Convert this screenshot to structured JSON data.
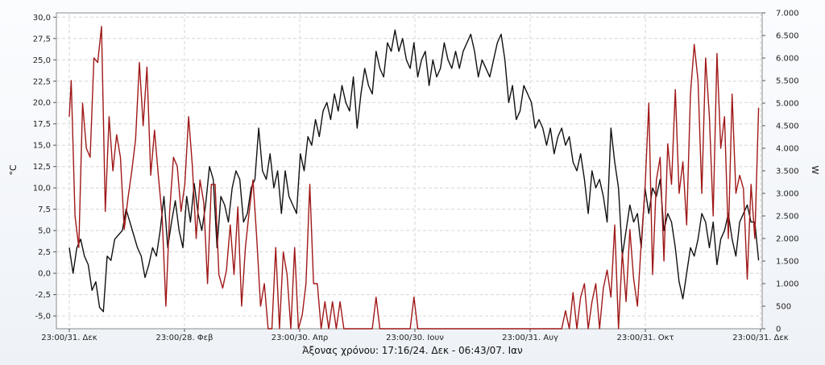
{
  "chart_data": {
    "type": "line",
    "caption": "Άξονας χρόνου: 17:16/24. Δεκ - 06:43/07. Ιαν",
    "ylabel_left": "°C",
    "ylabel_right": "W",
    "x_tick_labels": [
      "23:00/31. Δεκ",
      "23:00/28. Φεβ",
      "23:00/30. Απρ",
      "23:00/30. Ιουν",
      "23:00/31. Αυγ",
      "23:00/31. Οκτ",
      "23:00/31. Δεκ"
    ],
    "y_left": {
      "min": -6.5,
      "max": 30.5,
      "ticks": [
        "-5,0",
        "-2,5",
        "0,0",
        "2,5",
        "5,0",
        "7,5",
        "10,0",
        "12,5",
        "15,0",
        "17,5",
        "20,0",
        "22,5",
        "25,0",
        "27,5",
        "30,0"
      ],
      "tick_values": [
        -5,
        -2.5,
        0,
        2.5,
        5,
        7.5,
        10,
        12.5,
        15,
        17.5,
        20,
        22.5,
        25,
        27.5,
        30
      ]
    },
    "y_right": {
      "min": 0,
      "max": 7000,
      "ticks": [
        "0",
        "500",
        "1.000",
        "1.500",
        "2.000",
        "2.500",
        "3.000",
        "3.500",
        "4.000",
        "4.500",
        "5.000",
        "5.500",
        "6.000",
        "6.500",
        "7.000"
      ],
      "tick_values": [
        0,
        500,
        1000,
        1500,
        2000,
        2500,
        3000,
        3500,
        4000,
        4500,
        5000,
        5500,
        6000,
        6500,
        7000
      ]
    },
    "x_range_days": [
      0,
      365
    ],
    "grid": true,
    "series": [
      {
        "axis": "left",
        "color": "#111111",
        "points": [
          [
            0,
            3
          ],
          [
            2,
            0
          ],
          [
            4,
            3
          ],
          [
            6,
            4
          ],
          [
            8,
            2
          ],
          [
            10,
            1
          ],
          [
            12,
            -2
          ],
          [
            14,
            -1
          ],
          [
            16,
            -4
          ],
          [
            18,
            -4.5
          ],
          [
            20,
            2
          ],
          [
            22,
            1.5
          ],
          [
            24,
            4
          ],
          [
            26,
            4.5
          ],
          [
            28,
            5
          ],
          [
            30,
            7.5
          ],
          [
            32,
            6
          ],
          [
            34,
            4.5
          ],
          [
            36,
            3
          ],
          [
            38,
            2
          ],
          [
            40,
            -0.5
          ],
          [
            42,
            1
          ],
          [
            44,
            3
          ],
          [
            46,
            2
          ],
          [
            48,
            5
          ],
          [
            50,
            9
          ],
          [
            52,
            3
          ],
          [
            54,
            6
          ],
          [
            56,
            8.5
          ],
          [
            58,
            5
          ],
          [
            60,
            3
          ],
          [
            62,
            9
          ],
          [
            64,
            6
          ],
          [
            66,
            10.5
          ],
          [
            68,
            7
          ],
          [
            70,
            5
          ],
          [
            72,
            8
          ],
          [
            74,
            12.5
          ],
          [
            76,
            11
          ],
          [
            78,
            3
          ],
          [
            80,
            9
          ],
          [
            82,
            8
          ],
          [
            84,
            6
          ],
          [
            86,
            10
          ],
          [
            88,
            12
          ],
          [
            90,
            11
          ],
          [
            92,
            6
          ],
          [
            94,
            7
          ],
          [
            96,
            10
          ],
          [
            98,
            11
          ],
          [
            100,
            17
          ],
          [
            102,
            12
          ],
          [
            104,
            11
          ],
          [
            106,
            14
          ],
          [
            108,
            10
          ],
          [
            110,
            12
          ],
          [
            112,
            7
          ],
          [
            114,
            12
          ],
          [
            116,
            9
          ],
          [
            118,
            8
          ],
          [
            120,
            7
          ],
          [
            122,
            14
          ],
          [
            124,
            12
          ],
          [
            126,
            16
          ],
          [
            128,
            15
          ],
          [
            130,
            18
          ],
          [
            132,
            16
          ],
          [
            134,
            19
          ],
          [
            136,
            20
          ],
          [
            138,
            18
          ],
          [
            140,
            21
          ],
          [
            142,
            19
          ],
          [
            144,
            22
          ],
          [
            146,
            20
          ],
          [
            148,
            19
          ],
          [
            150,
            23
          ],
          [
            152,
            17
          ],
          [
            154,
            21
          ],
          [
            156,
            24
          ],
          [
            158,
            22
          ],
          [
            160,
            21
          ],
          [
            162,
            26
          ],
          [
            164,
            24
          ],
          [
            166,
            23
          ],
          [
            168,
            27
          ],
          [
            170,
            26
          ],
          [
            172,
            28.5
          ],
          [
            174,
            26
          ],
          [
            176,
            27.5
          ],
          [
            178,
            25
          ],
          [
            180,
            24
          ],
          [
            182,
            27
          ],
          [
            184,
            23
          ],
          [
            186,
            25
          ],
          [
            188,
            26
          ],
          [
            190,
            22
          ],
          [
            192,
            25
          ],
          [
            194,
            23
          ],
          [
            196,
            24
          ],
          [
            198,
            27
          ],
          [
            200,
            25
          ],
          [
            202,
            24
          ],
          [
            204,
            26
          ],
          [
            206,
            24
          ],
          [
            208,
            26
          ],
          [
            210,
            27
          ],
          [
            212,
            28
          ],
          [
            214,
            26
          ],
          [
            216,
            23
          ],
          [
            218,
            25
          ],
          [
            220,
            24
          ],
          [
            222,
            23
          ],
          [
            224,
            25
          ],
          [
            226,
            27
          ],
          [
            228,
            28
          ],
          [
            230,
            25
          ],
          [
            232,
            20
          ],
          [
            234,
            22
          ],
          [
            236,
            18
          ],
          [
            238,
            19
          ],
          [
            240,
            22
          ],
          [
            242,
            21
          ],
          [
            244,
            20
          ],
          [
            246,
            17
          ],
          [
            248,
            18
          ],
          [
            250,
            17
          ],
          [
            252,
            15
          ],
          [
            254,
            17
          ],
          [
            256,
            14
          ],
          [
            258,
            16
          ],
          [
            260,
            17
          ],
          [
            262,
            15
          ],
          [
            264,
            16
          ],
          [
            266,
            13
          ],
          [
            268,
            12
          ],
          [
            270,
            14
          ],
          [
            272,
            11
          ],
          [
            274,
            7
          ],
          [
            276,
            12
          ],
          [
            278,
            10
          ],
          [
            280,
            11
          ],
          [
            282,
            9
          ],
          [
            284,
            6
          ],
          [
            286,
            17
          ],
          [
            288,
            13
          ],
          [
            290,
            10
          ],
          [
            292,
            2
          ],
          [
            294,
            5
          ],
          [
            296,
            8
          ],
          [
            298,
            6
          ],
          [
            300,
            7
          ],
          [
            302,
            3
          ],
          [
            304,
            10
          ],
          [
            306,
            7
          ],
          [
            308,
            10
          ],
          [
            310,
            9
          ],
          [
            312,
            11
          ],
          [
            314,
            5
          ],
          [
            316,
            7
          ],
          [
            318,
            6
          ],
          [
            320,
            3
          ],
          [
            322,
            -1
          ],
          [
            324,
            -3
          ],
          [
            326,
            0
          ],
          [
            328,
            3
          ],
          [
            330,
            2
          ],
          [
            332,
            4
          ],
          [
            334,
            7
          ],
          [
            336,
            6
          ],
          [
            338,
            3
          ],
          [
            340,
            6
          ],
          [
            342,
            1
          ],
          [
            344,
            4
          ],
          [
            346,
            5
          ],
          [
            348,
            7
          ],
          [
            350,
            4
          ],
          [
            352,
            2
          ],
          [
            354,
            6
          ],
          [
            356,
            7
          ],
          [
            358,
            8
          ],
          [
            360,
            6
          ],
          [
            362,
            6
          ],
          [
            364,
            1.5
          ]
        ]
      },
      {
        "axis": "right",
        "color": "#a01818",
        "points": [
          [
            0,
            4700
          ],
          [
            1,
            5500
          ],
          [
            3,
            2500
          ],
          [
            5,
            1800
          ],
          [
            7,
            5000
          ],
          [
            9,
            4000
          ],
          [
            11,
            3800
          ],
          [
            13,
            6000
          ],
          [
            15,
            5900
          ],
          [
            17,
            6700
          ],
          [
            19,
            2600
          ],
          [
            21,
            4700
          ],
          [
            23,
            3500
          ],
          [
            25,
            4300
          ],
          [
            27,
            3800
          ],
          [
            29,
            2200
          ],
          [
            31,
            2900
          ],
          [
            33,
            3500
          ],
          [
            35,
            4200
          ],
          [
            37,
            5900
          ],
          [
            39,
            4500
          ],
          [
            41,
            5800
          ],
          [
            43,
            3400
          ],
          [
            45,
            4400
          ],
          [
            47,
            3400
          ],
          [
            49,
            2500
          ],
          [
            51,
            500
          ],
          [
            53,
            2600
          ],
          [
            55,
            3800
          ],
          [
            57,
            3600
          ],
          [
            59,
            2600
          ],
          [
            61,
            3200
          ],
          [
            63,
            4700
          ],
          [
            65,
            3600
          ],
          [
            67,
            2000
          ],
          [
            69,
            3300
          ],
          [
            71,
            2800
          ],
          [
            73,
            1000
          ],
          [
            75,
            3200
          ],
          [
            77,
            3200
          ],
          [
            79,
            1200
          ],
          [
            81,
            900
          ],
          [
            83,
            1300
          ],
          [
            85,
            2300
          ],
          [
            87,
            1200
          ],
          [
            89,
            2700
          ],
          [
            91,
            500
          ],
          [
            93,
            1800
          ],
          [
            95,
            2600
          ],
          [
            97,
            3300
          ],
          [
            99,
            2000
          ],
          [
            101,
            500
          ],
          [
            103,
            1000
          ],
          [
            105,
            0
          ],
          [
            107,
            0
          ],
          [
            109,
            1800
          ],
          [
            111,
            0
          ],
          [
            113,
            1700
          ],
          [
            115,
            1200
          ],
          [
            117,
            0
          ],
          [
            119,
            1800
          ],
          [
            121,
            0
          ],
          [
            123,
            300
          ],
          [
            125,
            1000
          ],
          [
            127,
            3200
          ],
          [
            129,
            1000
          ],
          [
            131,
            1000
          ],
          [
            133,
            0
          ],
          [
            135,
            600
          ],
          [
            137,
            0
          ],
          [
            139,
            600
          ],
          [
            141,
            0
          ],
          [
            143,
            600
          ],
          [
            145,
            0
          ],
          [
            150,
            0
          ],
          [
            160,
            0
          ],
          [
            162,
            700
          ],
          [
            164,
            0
          ],
          [
            180,
            0
          ],
          [
            182,
            700
          ],
          [
            184,
            0
          ],
          [
            240,
            0
          ],
          [
            260,
            0
          ],
          [
            262,
            400
          ],
          [
            264,
            0
          ],
          [
            266,
            800
          ],
          [
            268,
            0
          ],
          [
            270,
            700
          ],
          [
            272,
            1000
          ],
          [
            274,
            0
          ],
          [
            276,
            600
          ],
          [
            278,
            1000
          ],
          [
            280,
            0
          ],
          [
            282,
            900
          ],
          [
            284,
            1300
          ],
          [
            286,
            700
          ],
          [
            288,
            2300
          ],
          [
            290,
            0
          ],
          [
            292,
            1700
          ],
          [
            294,
            600
          ],
          [
            296,
            2200
          ],
          [
            298,
            1100
          ],
          [
            300,
            500
          ],
          [
            302,
            1900
          ],
          [
            304,
            3100
          ],
          [
            306,
            5000
          ],
          [
            308,
            1200
          ],
          [
            310,
            3300
          ],
          [
            312,
            3800
          ],
          [
            314,
            1500
          ],
          [
            316,
            4100
          ],
          [
            318,
            3200
          ],
          [
            320,
            5300
          ],
          [
            322,
            3000
          ],
          [
            324,
            3700
          ],
          [
            326,
            2300
          ],
          [
            328,
            5200
          ],
          [
            330,
            6300
          ],
          [
            332,
            5500
          ],
          [
            334,
            3000
          ],
          [
            336,
            6000
          ],
          [
            338,
            4700
          ],
          [
            340,
            2500
          ],
          [
            342,
            6100
          ],
          [
            344,
            4000
          ],
          [
            346,
            4700
          ],
          [
            348,
            2000
          ],
          [
            350,
            5200
          ],
          [
            352,
            3000
          ],
          [
            354,
            3400
          ],
          [
            356,
            3100
          ],
          [
            358,
            1100
          ],
          [
            360,
            3200
          ],
          [
            362,
            2000
          ],
          [
            364,
            4900
          ]
        ]
      }
    ]
  }
}
